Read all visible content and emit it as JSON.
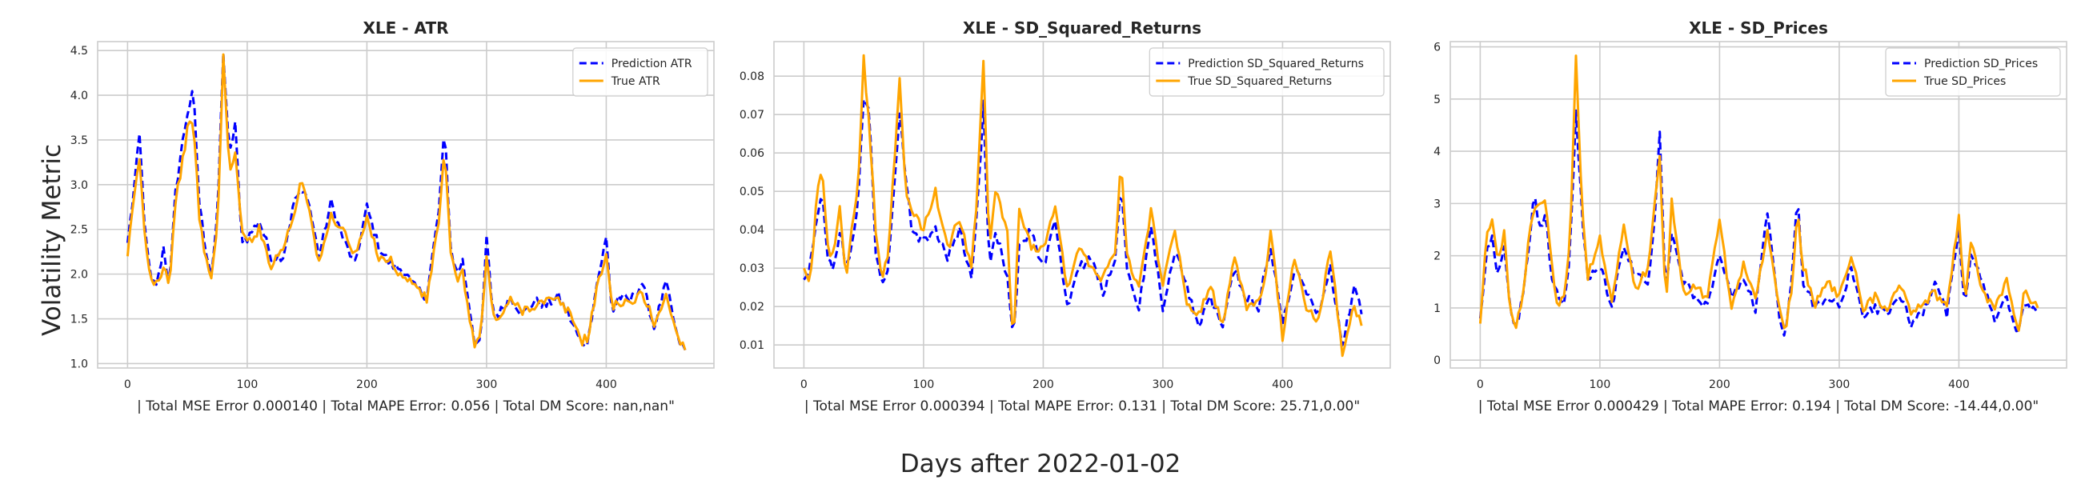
{
  "figure": {
    "ylabel": "Volatility Metric",
    "xlabel": "Days after 2022-01-02"
  },
  "colors": {
    "prediction": "#0000ff",
    "true": "#ffa500",
    "grid": "#cccccc"
  },
  "chart_data": [
    {
      "type": "line",
      "title": "XLE - ATR",
      "xlabel": "| Total MSE Error 0.000140 | Total MAPE Error: 0.056 | Total DM Score: nan,nan\"",
      "ylabel": "Volatility Metric",
      "xlim": [
        -25,
        490
      ],
      "ylim": [
        0.95,
        4.6
      ],
      "xticks": [
        0,
        100,
        200,
        300,
        400
      ],
      "yticks": [
        1.0,
        1.5,
        2.0,
        2.5,
        3.0,
        3.5,
        4.0,
        4.5
      ],
      "ytick_labels": [
        "1.0",
        "1.5",
        "2.0",
        "2.5",
        "3.0",
        "3.5",
        "4.0",
        "4.5"
      ],
      "grid": true,
      "legend": "top-right",
      "keypoints_x": [
        0,
        5,
        10,
        15,
        20,
        25,
        30,
        35,
        40,
        45,
        50,
        55,
        60,
        65,
        70,
        75,
        80,
        85,
        90,
        95,
        100,
        110,
        120,
        130,
        140,
        145,
        150,
        160,
        170,
        180,
        190,
        200,
        210,
        220,
        230,
        240,
        250,
        260,
        265,
        270,
        275,
        280,
        290,
        295,
        300,
        305,
        310,
        320,
        330,
        340,
        350,
        360,
        370,
        380,
        385,
        390,
        400,
        405,
        410,
        420,
        430,
        440,
        450,
        460,
        466
      ],
      "series": [
        {
          "name": "Prediction ATR",
          "style": "dashed",
          "color": "#0000ff",
          "values": [
            2.35,
            2.9,
            3.55,
            2.4,
            1.9,
            1.9,
            2.3,
            1.85,
            2.9,
            3.4,
            3.8,
            4.05,
            2.8,
            2.3,
            2.0,
            2.6,
            4.5,
            3.3,
            3.7,
            2.4,
            2.4,
            2.6,
            2.2,
            2.2,
            2.85,
            2.9,
            2.9,
            2.2,
            2.8,
            2.4,
            2.1,
            2.75,
            2.3,
            2.1,
            2.05,
            1.85,
            1.75,
            2.7,
            3.65,
            2.3,
            2.0,
            2.15,
            1.25,
            1.2,
            2.4,
            1.6,
            1.55,
            1.75,
            1.55,
            1.7,
            1.65,
            1.75,
            1.5,
            1.2,
            1.25,
            1.75,
            2.4,
            1.55,
            1.75,
            1.7,
            1.9,
            1.4,
            1.9,
            1.25,
            1.15
          ]
        },
        {
          "name": "True ATR",
          "style": "solid",
          "color": "#ffa500",
          "values": [
            2.2,
            2.8,
            3.3,
            2.3,
            1.95,
            1.9,
            2.1,
            1.9,
            2.8,
            3.2,
            3.6,
            3.75,
            2.6,
            2.2,
            1.95,
            2.5,
            4.45,
            3.1,
            3.4,
            2.5,
            2.35,
            2.5,
            2.1,
            2.3,
            2.7,
            3.1,
            2.85,
            2.1,
            2.65,
            2.5,
            2.2,
            2.6,
            2.2,
            2.15,
            1.95,
            1.9,
            1.7,
            2.6,
            3.4,
            2.2,
            1.95,
            2.0,
            1.2,
            1.3,
            2.2,
            1.55,
            1.5,
            1.7,
            1.6,
            1.65,
            1.7,
            1.7,
            1.55,
            1.25,
            1.3,
            1.7,
            2.25,
            1.6,
            1.7,
            1.65,
            1.8,
            1.45,
            1.75,
            1.3,
            1.15
          ]
        }
      ]
    },
    {
      "type": "line",
      "title": "XLE - SD_Squared_Returns",
      "xlabel": "| Total MSE Error 0.000394 | Total MAPE Error: 0.131 | Total DM Score: 25.71,0.00\"",
      "ylabel": "",
      "xlim": [
        -25,
        490
      ],
      "ylim": [
        0.004,
        0.089
      ],
      "xticks": [
        0,
        100,
        200,
        300,
        400
      ],
      "yticks": [
        0.01,
        0.02,
        0.03,
        0.04,
        0.05,
        0.06,
        0.07,
        0.08
      ],
      "ytick_labels": [
        "0.01",
        "0.02",
        "0.03",
        "0.04",
        "0.05",
        "0.06",
        "0.07",
        "0.08"
      ],
      "grid": true,
      "legend": "top-right",
      "keypoints_x": [
        0,
        5,
        10,
        15,
        20,
        25,
        30,
        35,
        40,
        45,
        50,
        55,
        60,
        65,
        70,
        75,
        80,
        85,
        90,
        100,
        110,
        120,
        130,
        140,
        145,
        150,
        155,
        160,
        170,
        175,
        180,
        190,
        200,
        210,
        220,
        230,
        240,
        250,
        260,
        265,
        270,
        280,
        290,
        300,
        310,
        320,
        330,
        340,
        350,
        360,
        370,
        380,
        385,
        390,
        400,
        410,
        420,
        430,
        440,
        450,
        460,
        466
      ],
      "series": [
        {
          "name": "Prediction SD_Squared_Returns",
          "style": "dashed",
          "color": "#0000ff",
          "values": [
            0.027,
            0.03,
            0.04,
            0.051,
            0.032,
            0.03,
            0.04,
            0.03,
            0.035,
            0.045,
            0.075,
            0.07,
            0.035,
            0.026,
            0.03,
            0.05,
            0.07,
            0.055,
            0.04,
            0.037,
            0.04,
            0.033,
            0.04,
            0.028,
            0.045,
            0.073,
            0.03,
            0.04,
            0.028,
            0.01,
            0.035,
            0.04,
            0.03,
            0.042,
            0.02,
            0.03,
            0.033,
            0.023,
            0.033,
            0.052,
            0.03,
            0.02,
            0.04,
            0.02,
            0.035,
            0.025,
            0.015,
            0.022,
            0.015,
            0.03,
            0.022,
            0.02,
            0.03,
            0.035,
            0.015,
            0.03,
            0.023,
            0.018,
            0.03,
            0.01,
            0.025,
            0.018
          ]
        },
        {
          "name": "True SD_Squared_Returns",
          "style": "solid",
          "color": "#ffa500",
          "values": [
            0.03,
            0.025,
            0.045,
            0.058,
            0.035,
            0.033,
            0.045,
            0.027,
            0.04,
            0.05,
            0.085,
            0.065,
            0.04,
            0.028,
            0.033,
            0.055,
            0.079,
            0.05,
            0.045,
            0.04,
            0.05,
            0.035,
            0.043,
            0.03,
            0.05,
            0.084,
            0.035,
            0.05,
            0.04,
            0.009,
            0.045,
            0.035,
            0.035,
            0.045,
            0.025,
            0.035,
            0.03,
            0.027,
            0.035,
            0.057,
            0.033,
            0.025,
            0.045,
            0.025,
            0.04,
            0.02,
            0.018,
            0.025,
            0.015,
            0.033,
            0.02,
            0.022,
            0.025,
            0.04,
            0.012,
            0.033,
            0.02,
            0.016,
            0.035,
            0.008,
            0.02,
            0.015
          ]
        }
      ]
    },
    {
      "type": "line",
      "title": "XLE - SD_Prices",
      "xlabel": "| Total MSE Error 0.000429 | Total MAPE Error: 0.194 | Total DM Score: -14.44,0.00\"",
      "ylabel": "",
      "xlim": [
        -25,
        490
      ],
      "ylim": [
        -0.15,
        6.1
      ],
      "xticks": [
        0,
        100,
        200,
        300,
        400
      ],
      "yticks": [
        0,
        1,
        2,
        3,
        4,
        5,
        6
      ],
      "ytick_labels": [
        "0",
        "1",
        "2",
        "3",
        "4",
        "5",
        "6"
      ],
      "grid": true,
      "legend": "top-right",
      "keypoints_x": [
        0,
        5,
        10,
        15,
        20,
        25,
        30,
        35,
        40,
        45,
        50,
        55,
        60,
        65,
        70,
        75,
        80,
        85,
        90,
        100,
        110,
        120,
        130,
        140,
        145,
        150,
        155,
        160,
        170,
        180,
        190,
        200,
        210,
        220,
        230,
        240,
        250,
        255,
        260,
        265,
        270,
        280,
        290,
        300,
        310,
        320,
        330,
        340,
        350,
        360,
        370,
        380,
        390,
        400,
        405,
        410,
        420,
        430,
        440,
        450,
        455,
        460,
        466
      ],
      "series": [
        {
          "name": "Prediction SD_Prices",
          "style": "dashed",
          "color": "#0000ff",
          "values": [
            0.8,
            2.0,
            2.4,
            1.6,
            2.2,
            1.0,
            0.6,
            1.2,
            2.0,
            3.2,
            2.5,
            2.8,
            1.5,
            1.2,
            1.0,
            2.0,
            4.8,
            2.8,
            1.5,
            1.8,
            1.0,
            2.2,
            1.6,
            1.5,
            2.5,
            4.3,
            1.2,
            2.5,
            1.5,
            1.2,
            1.0,
            2.0,
            1.2,
            1.6,
            1.0,
            2.8,
            0.8,
            0.4,
            1.5,
            3.2,
            1.5,
            1.0,
            1.2,
            1.0,
            1.8,
            0.8,
            1.0,
            0.9,
            1.3,
            0.7,
            0.9,
            1.5,
            0.9,
            2.5,
            1.0,
            2.0,
            1.5,
            0.8,
            1.2,
            0.5,
            1.1,
            1.0,
            0.9
          ]
        },
        {
          "name": "True SD_Prices",
          "style": "solid",
          "color": "#ffa500",
          "values": [
            0.7,
            2.3,
            2.7,
            1.8,
            2.5,
            0.9,
            0.7,
            1.0,
            2.2,
            3.0,
            3.0,
            3.0,
            1.8,
            1.0,
            1.2,
            2.3,
            5.85,
            3.0,
            1.6,
            2.3,
            1.2,
            2.6,
            1.3,
            1.8,
            2.8,
            4.0,
            1.0,
            3.0,
            1.3,
            1.4,
            1.2,
            2.7,
            1.0,
            1.8,
            1.2,
            2.5,
            1.0,
            0.6,
            1.3,
            2.8,
            1.8,
            1.1,
            1.5,
            1.2,
            2.0,
            1.0,
            1.2,
            1.0,
            1.5,
            0.9,
            1.1,
            1.3,
            1.0,
            2.8,
            1.1,
            2.3,
            1.3,
            1.0,
            1.5,
            0.6,
            1.4,
            1.1,
            1.0
          ]
        }
      ]
    }
  ]
}
